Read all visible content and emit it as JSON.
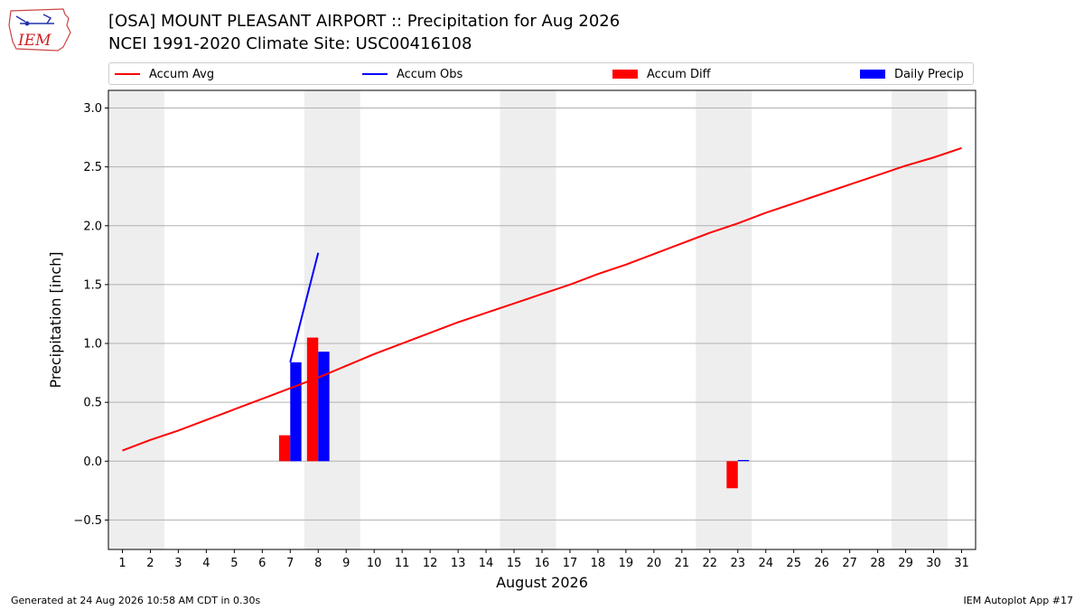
{
  "header": {
    "title_line1": "[OSA] MOUNT PLEASANT AIRPORT :: Precipitation for Aug 2026",
    "title_line2": "NCEI 1991-2020 Climate Site: USC00416108",
    "logo_text": "IEM"
  },
  "footer": {
    "generated": "Generated at 24 Aug 2026 10:58 AM CDT in 0.30s",
    "app": "IEM Autoplot App #17"
  },
  "legend": {
    "accum_avg": "Accum Avg",
    "accum_obs": "Accum Obs",
    "accum_diff": "Accum Diff",
    "daily_precip": "Daily Precip"
  },
  "colors": {
    "avg": "#ff0000",
    "obs": "#0000ff",
    "diff": "#ff0000",
    "daily": "#0000ff",
    "weekend_shade": "#eeeeee",
    "grid": "#b0b0b0"
  },
  "chart_data": {
    "type": "bar",
    "xlabel": "August 2026",
    "ylabel": "Precipitation [inch]",
    "xlim": [
      0.5,
      31.5
    ],
    "ylim": [
      -0.75,
      3.15
    ],
    "yticks": [
      -0.5,
      0.0,
      0.5,
      1.0,
      1.5,
      2.0,
      2.5,
      3.0
    ],
    "ytick_labels": [
      "−0.5",
      "0.0",
      "0.5",
      "1.0",
      "1.5",
      "2.0",
      "2.5",
      "3.0"
    ],
    "days": [
      1,
      2,
      3,
      4,
      5,
      6,
      7,
      8,
      9,
      10,
      11,
      12,
      13,
      14,
      15,
      16,
      17,
      18,
      19,
      20,
      21,
      22,
      23,
      24,
      25,
      26,
      27,
      28,
      29,
      30,
      31
    ],
    "weekend_spans": [
      [
        1,
        2
      ],
      [
        8,
        9
      ],
      [
        15,
        16
      ],
      [
        22,
        23
      ],
      [
        29,
        30
      ]
    ],
    "grid": "horizontal",
    "legend_position": "top",
    "series": [
      {
        "name": "Accum Avg",
        "kind": "line",
        "x": [
          1,
          2,
          3,
          4,
          5,
          6,
          7,
          8,
          9,
          10,
          11,
          12,
          13,
          14,
          15,
          16,
          17,
          18,
          19,
          20,
          21,
          22,
          23,
          24,
          25,
          26,
          27,
          28,
          29,
          30,
          31
        ],
        "values": [
          0.09,
          0.18,
          0.26,
          0.35,
          0.44,
          0.53,
          0.62,
          0.71,
          0.81,
          0.91,
          1.0,
          1.09,
          1.18,
          1.26,
          1.34,
          1.42,
          1.5,
          1.59,
          1.67,
          1.76,
          1.85,
          1.94,
          2.02,
          2.11,
          2.19,
          2.27,
          2.35,
          2.43,
          2.51,
          2.58,
          2.66
        ]
      },
      {
        "name": "Accum Obs",
        "kind": "line",
        "x": [
          7,
          8
        ],
        "values": [
          0.84,
          1.77
        ]
      },
      {
        "name": "Accum Diff",
        "kind": "bar",
        "x": [
          7,
          8,
          23
        ],
        "values": [
          0.22,
          1.05,
          -0.23
        ]
      },
      {
        "name": "Daily Precip",
        "kind": "bar",
        "x": [
          7,
          8,
          23
        ],
        "values": [
          0.84,
          0.93,
          0.01
        ]
      }
    ]
  }
}
